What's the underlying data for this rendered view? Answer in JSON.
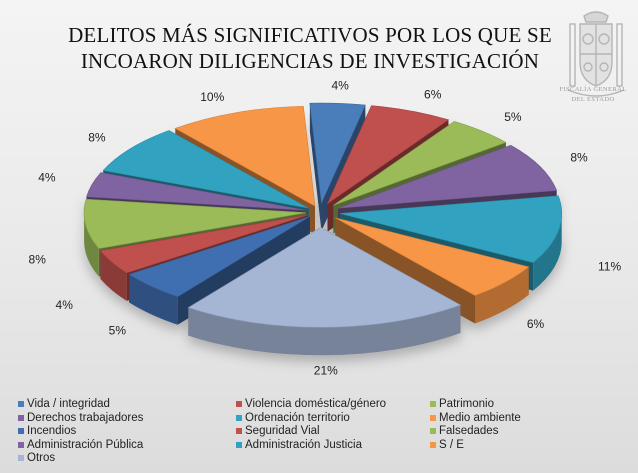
{
  "chart_data": {
    "type": "pie",
    "title": [
      "DELITOS MÁS SIGNIFICATIVOS POR LOS QUE SE",
      "INCOARON DILIGENCIAS DE INVESTIGACIÓN"
    ],
    "slices": [
      {
        "name": "Vida / integridad",
        "value": 4,
        "label": "4%",
        "color": "#4a7ebb"
      },
      {
        "name": "Violencia doméstica/género",
        "value": 6,
        "label": "6%",
        "color": "#c0504d"
      },
      {
        "name": "Patrimonio",
        "value": 5,
        "label": "5%",
        "color": "#9bbb59"
      },
      {
        "name": "Derechos trabajadores",
        "value": 8,
        "label": "8%",
        "color": "#8064a2"
      },
      {
        "name": "Ordenación territorio",
        "value": 11,
        "label": "11%",
        "color": "#31a3c1"
      },
      {
        "name": "Medio ambiente",
        "value": 6,
        "label": "6%",
        "color": "#f79646"
      },
      {
        "name": "Otros",
        "value": 21,
        "label": "21%",
        "color": "#a5b6d4"
      },
      {
        "name": "Incendios",
        "value": 5,
        "label": "5%",
        "color": "#3f6fb0"
      },
      {
        "name": "Seguridad Vial",
        "value": 4,
        "label": "4%",
        "color": "#c0504d"
      },
      {
        "name": "Falsedades",
        "value": 8,
        "label": "8%",
        "color": "#9bbb59"
      },
      {
        "name": "Administración Pública",
        "value": 4,
        "label": "4%",
        "color": "#8064a2"
      },
      {
        "name": "Administración Justicia",
        "value": 8,
        "label": "8%",
        "color": "#31a3c1"
      },
      {
        "name": "S / E",
        "value": 10,
        "label": "10%",
        "color": "#f79646"
      }
    ],
    "legend_position": "bottom"
  },
  "legend": [
    {
      "label": "Vida / integridad",
      "color": "#4a7ebb"
    },
    {
      "label": "Violencia doméstica/género",
      "color": "#c0504d"
    },
    {
      "label": "Patrimonio",
      "color": "#9bbb59"
    },
    {
      "label": "Derechos trabajadores",
      "color": "#8064a2"
    },
    {
      "label": "Ordenación territorio",
      "color": "#31a3c1"
    },
    {
      "label": "Medio ambiente",
      "color": "#f79646"
    },
    {
      "label": "Incendios",
      "color": "#3f6fb0"
    },
    {
      "label": "Seguridad Vial",
      "color": "#c0504d"
    },
    {
      "label": "Falsedades",
      "color": "#9bbb59"
    },
    {
      "label": "Administración Pública",
      "color": "#8064a2"
    },
    {
      "label": "Administración Justicia",
      "color": "#31a3c1"
    },
    {
      "label": "S / E",
      "color": "#f79646"
    },
    {
      "label": "Otros",
      "color": "#a5b6d4"
    }
  ],
  "logo": {
    "line1": "FISCALÍA GENERAL",
    "line2": "DEL ESTADO",
    "icon": "coat-of-arms-icon"
  }
}
